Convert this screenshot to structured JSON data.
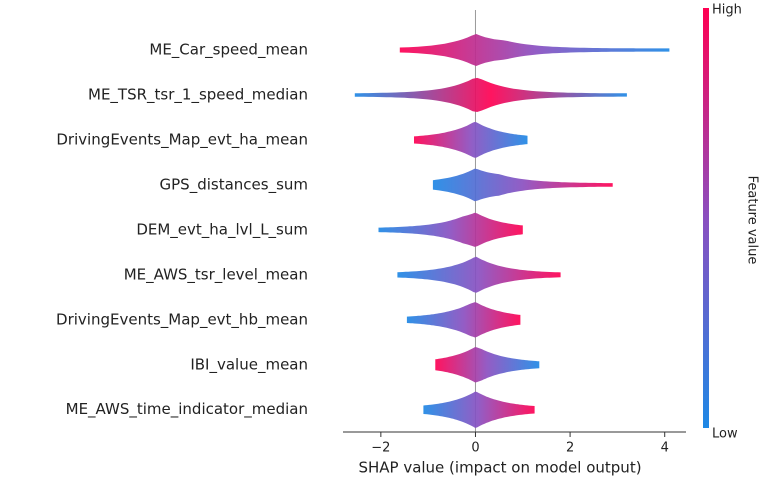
{
  "chart_data": {
    "type": "beeswarm",
    "x_label": "SHAP value (impact on model output)",
    "categories": [
      "ME_Car_speed_mean",
      "ME_TSR_tsr_1_speed_median",
      "DrivingEvents_Map_evt_ha_mean",
      "GPS_distances_sum",
      "DEM_evt_ha_lvl_L_sum",
      "ME_AWS_tsr_level_mean",
      "DrivingEvents_Map_evt_hb_mean",
      "IBI_value_mean",
      "ME_AWS_time_indicator_median"
    ],
    "ranges": [
      [
        -1.6,
        4.1
      ],
      [
        -2.55,
        3.2
      ],
      [
        -1.3,
        1.1
      ],
      [
        -0.9,
        2.9
      ],
      [
        -2.05,
        1.0
      ],
      [
        -1.65,
        1.8
      ],
      [
        -1.45,
        0.95
      ],
      [
        -0.85,
        1.35
      ],
      [
        -1.1,
        1.25
      ]
    ],
    "high_side": [
      "left",
      "mixed",
      "left",
      "right",
      "right",
      "right",
      "right",
      "left",
      "right"
    ],
    "xlim": [
      -2.8,
      4.45
    ],
    "xticks": [
      {
        "value": -2,
        "label": "−2"
      },
      0,
      2,
      4
    ],
    "colorbar": {
      "high": "High",
      "low": "Low",
      "label": "Feature value",
      "colors": [
        "#1e88e5",
        "#ff0052"
      ]
    }
  }
}
